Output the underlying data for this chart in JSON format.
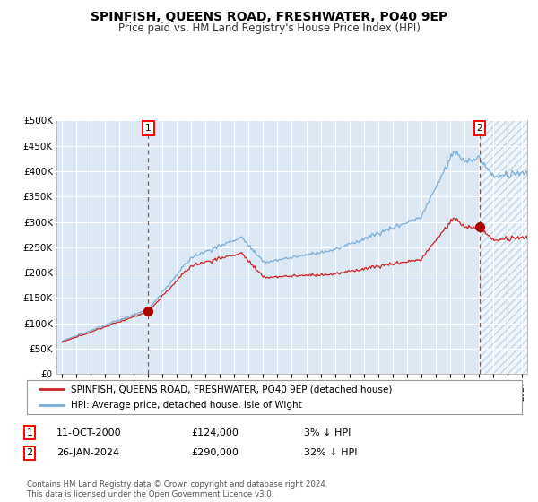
{
  "title": "SPINFISH, QUEENS ROAD, FRESHWATER, PO40 9EP",
  "subtitle": "Price paid vs. HM Land Registry's House Price Index (HPI)",
  "bg_color": "#dce9f5",
  "grid_color": "#ffffff",
  "hatch_color": "#aac4dc",
  "ylim": [
    0,
    500000
  ],
  "yticks": [
    0,
    50000,
    100000,
    150000,
    200000,
    250000,
    300000,
    350000,
    400000,
    450000,
    500000
  ],
  "ytick_labels": [
    "£0",
    "£50K",
    "£100K",
    "£150K",
    "£200K",
    "£250K",
    "£300K",
    "£350K",
    "£400K",
    "£450K",
    "£500K"
  ],
  "xlim_left": 1994.6,
  "xlim_right": 2027.4,
  "sale1_year": 2001.0,
  "sale1_price": 124000,
  "sale2_year": 2024.08,
  "sale2_price": 290000,
  "red_color": "#cc2222",
  "blue_color": "#7aaed6",
  "dot_color": "#aa0000",
  "legend_text1": "SPINFISH, QUEENS ROAD, FRESHWATER, PO40 9EP (detached house)",
  "legend_text2": "HPI: Average price, detached house, Isle of Wight",
  "table_row1_num": "1",
  "table_row1_date": "11-OCT-2000",
  "table_row1_price": "£124,000",
  "table_row1_hpi": "3% ↓ HPI",
  "table_row2_num": "2",
  "table_row2_date": "26-JAN-2024",
  "table_row2_price": "£290,000",
  "table_row2_hpi": "32% ↓ HPI",
  "footer": "Contains HM Land Registry data © Crown copyright and database right 2024.\nThis data is licensed under the Open Government Licence v3.0."
}
